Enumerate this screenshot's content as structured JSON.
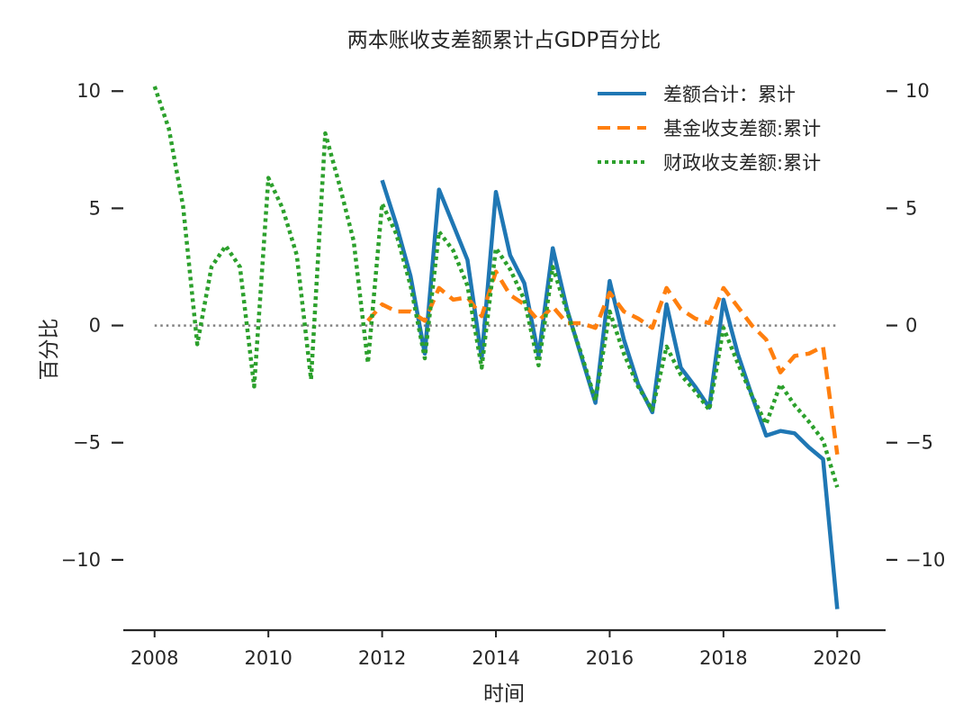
{
  "chart_data": {
    "type": "line",
    "title": "两本账收支差额累计占GDP百分比",
    "xlabel": "时间",
    "ylabel": "百分比",
    "xlim": [
      2007.45,
      2020.85
    ],
    "ylim": [
      -13.0,
      11.2
    ],
    "x_ticks": [
      2008,
      2010,
      2012,
      2014,
      2016,
      2018,
      2020
    ],
    "y_ticks": [
      10,
      5,
      0,
      -5,
      -10
    ],
    "y_tick_labels": [
      "10",
      "5",
      "0",
      "−5",
      "−10"
    ],
    "right_y_tick_labels": [
      "10",
      "5",
      "0",
      "−5",
      "−10"
    ],
    "legend_position": "top-right",
    "grid": false,
    "reference_line": {
      "y": 0,
      "style": "dotted",
      "color": "#808080"
    },
    "series": [
      {
        "name": "差额合计：累计",
        "color": "#1f77b4",
        "style": "solid",
        "points": [
          [
            2012.0,
            6.2
          ],
          [
            2012.25,
            4.3
          ],
          [
            2012.5,
            2.1
          ],
          [
            2012.75,
            -1.2
          ],
          [
            2013.0,
            5.8
          ],
          [
            2013.25,
            4.3
          ],
          [
            2013.5,
            2.8
          ],
          [
            2013.75,
            -1.4
          ],
          [
            2014.0,
            5.7
          ],
          [
            2014.25,
            3.0
          ],
          [
            2014.5,
            1.8
          ],
          [
            2014.75,
            -1.3
          ],
          [
            2015.0,
            3.3
          ],
          [
            2015.25,
            0.7
          ],
          [
            2015.5,
            -1.3
          ],
          [
            2015.75,
            -3.3
          ],
          [
            2016.0,
            1.9
          ],
          [
            2016.25,
            -0.6
          ],
          [
            2016.5,
            -2.5
          ],
          [
            2016.75,
            -3.7
          ],
          [
            2017.0,
            0.9
          ],
          [
            2017.25,
            -1.8
          ],
          [
            2017.5,
            -2.6
          ],
          [
            2017.75,
            -3.5
          ],
          [
            2018.0,
            1.1
          ],
          [
            2018.25,
            -1.2
          ],
          [
            2018.5,
            -3.0
          ],
          [
            2018.75,
            -4.7
          ],
          [
            2019.0,
            -4.5
          ],
          [
            2019.25,
            -4.6
          ],
          [
            2019.5,
            -5.2
          ],
          [
            2019.75,
            -5.7
          ],
          [
            2020.0,
            -12.1
          ]
        ]
      },
      {
        "name": "基金收支差额:累计",
        "color": "#ff7f0e",
        "style": "dashed",
        "points": [
          [
            2011.75,
            0.2
          ],
          [
            2012.0,
            0.9
          ],
          [
            2012.25,
            0.6
          ],
          [
            2012.5,
            0.6
          ],
          [
            2012.75,
            0.2
          ],
          [
            2013.0,
            1.6
          ],
          [
            2013.25,
            1.1
          ],
          [
            2013.5,
            1.2
          ],
          [
            2013.75,
            0.4
          ],
          [
            2014.0,
            2.3
          ],
          [
            2014.25,
            1.3
          ],
          [
            2014.5,
            0.9
          ],
          [
            2014.75,
            0.2
          ],
          [
            2015.0,
            0.8
          ],
          [
            2015.25,
            0.1
          ],
          [
            2015.5,
            0.1
          ],
          [
            2015.75,
            -0.1
          ],
          [
            2016.0,
            1.4
          ],
          [
            2016.25,
            0.6
          ],
          [
            2016.5,
            0.3
          ],
          [
            2016.75,
            -0.1
          ],
          [
            2017.0,
            1.6
          ],
          [
            2017.25,
            0.7
          ],
          [
            2017.5,
            0.3
          ],
          [
            2017.75,
            0.1
          ],
          [
            2018.0,
            1.6
          ],
          [
            2018.25,
            0.8
          ],
          [
            2018.5,
            0.0
          ],
          [
            2018.75,
            -0.6
          ],
          [
            2019.0,
            -2.0
          ],
          [
            2019.25,
            -1.3
          ],
          [
            2019.5,
            -1.2
          ],
          [
            2019.75,
            -0.9
          ],
          [
            2020.0,
            -5.5
          ]
        ]
      },
      {
        "name": "财政收支差额:累计",
        "color": "#2ca02c",
        "style": "dotted",
        "points": [
          [
            2008.0,
            10.2
          ],
          [
            2008.25,
            8.4
          ],
          [
            2008.5,
            5.1
          ],
          [
            2008.75,
            -0.8
          ],
          [
            2009.0,
            2.5
          ],
          [
            2009.25,
            3.4
          ],
          [
            2009.5,
            2.5
          ],
          [
            2009.75,
            -2.6
          ],
          [
            2010.0,
            6.3
          ],
          [
            2010.25,
            5.0
          ],
          [
            2010.5,
            3.0
          ],
          [
            2010.75,
            -2.3
          ],
          [
            2011.0,
            8.2
          ],
          [
            2011.25,
            6.0
          ],
          [
            2011.5,
            3.6
          ],
          [
            2011.75,
            -1.6
          ],
          [
            2012.0,
            5.2
          ],
          [
            2012.25,
            3.9
          ],
          [
            2012.5,
            1.7
          ],
          [
            2012.75,
            -1.4
          ],
          [
            2013.0,
            4.0
          ],
          [
            2013.25,
            3.2
          ],
          [
            2013.5,
            1.7
          ],
          [
            2013.75,
            -1.8
          ],
          [
            2014.0,
            3.3
          ],
          [
            2014.25,
            2.4
          ],
          [
            2014.5,
            1.1
          ],
          [
            2014.75,
            -1.7
          ],
          [
            2015.0,
            2.5
          ],
          [
            2015.25,
            0.6
          ],
          [
            2015.5,
            -1.2
          ],
          [
            2015.75,
            -3.2
          ],
          [
            2016.0,
            0.6
          ],
          [
            2016.25,
            -1.2
          ],
          [
            2016.5,
            -2.6
          ],
          [
            2016.75,
            -3.6
          ],
          [
            2017.0,
            -0.9
          ],
          [
            2017.25,
            -2.1
          ],
          [
            2017.5,
            -2.8
          ],
          [
            2017.75,
            -3.6
          ],
          [
            2018.0,
            -0.1
          ],
          [
            2018.25,
            -1.6
          ],
          [
            2018.5,
            -3.0
          ],
          [
            2018.75,
            -4.2
          ],
          [
            2019.0,
            -2.5
          ],
          [
            2019.25,
            -3.4
          ],
          [
            2019.5,
            -4.1
          ],
          [
            2019.75,
            -4.9
          ],
          [
            2020.0,
            -6.9
          ]
        ]
      }
    ]
  }
}
